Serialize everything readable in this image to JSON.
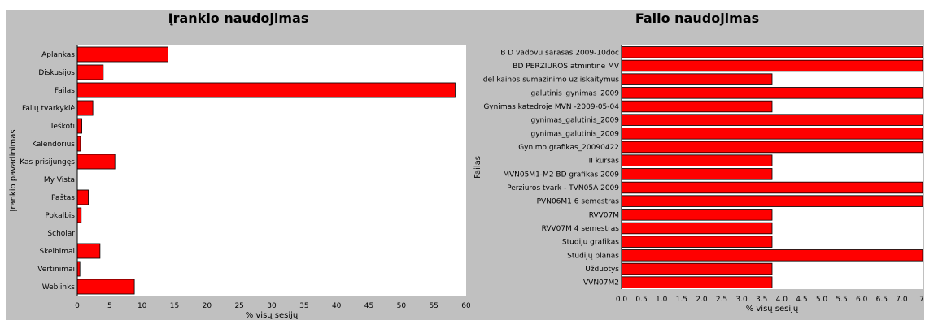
{
  "chart_data": [
    {
      "type": "bar",
      "orientation": "horizontal",
      "title": "Įrankio naudojimas",
      "xlabel": "% visų sesijų",
      "ylabel": "Įrankio pavadinimas",
      "xlim": [
        0,
        60
      ],
      "xticks": [
        "0",
        "5",
        "10",
        "15",
        "20",
        "25",
        "30",
        "35",
        "40",
        "45",
        "50",
        "55",
        "60"
      ],
      "categories": [
        "Aplankas",
        "Diskusijos",
        "Failas",
        "Failų tvarkyklė",
        "Ieškoti",
        "Kalendorius",
        "Kas prisijungęs",
        "My Vista",
        "Paštas",
        "Pokalbis",
        "Scholar",
        "Skelbimai",
        "Vertinimai",
        "Weblinks"
      ],
      "values": [
        14,
        4,
        58.3,
        2.4,
        0.7,
        0.5,
        5.8,
        0,
        1.7,
        0.6,
        0,
        3.5,
        0.4,
        8.8
      ],
      "bar_color": "#ff0000",
      "grid": false
    },
    {
      "type": "bar",
      "orientation": "horizontal",
      "title": "Failo naudojimas",
      "xlabel": "% visų sesijų",
      "ylabel": "Failas",
      "xlim": [
        0,
        7.4
      ],
      "xticks": [
        "0.0",
        "0.5",
        "1.0",
        "1.5",
        "2.0",
        "2.5",
        "3.0",
        "3.5",
        "4.0",
        "4.5",
        "5.0",
        "5.5",
        "6.0",
        "6.5",
        "7.0",
        "7"
      ],
      "categories": [
        "B D  vadovu sarasas  2009-10doc",
        "BD PERZIUROS atmintine MV",
        "del kainos sumazinimo uz iskaitymus",
        "galutinis_gynimas_2009",
        "Gynimas katedroje MVN -2009-05-04",
        "gynimas_galutinis_2009",
        "gynimas_galutinis_2009",
        "Gynimo grafikas_20090422",
        "II kursas",
        "MVN05M1-M2 BD grafikas 2009",
        "Perziuros tvark - TVN05A  2009",
        "PVN06M1 6 semestras",
        "RVV07M",
        "RVV07M 4 semestras",
        "Studiju grafikas",
        "Studijų planas",
        "Užduotys",
        "VVN07M2"
      ],
      "values": [
        7.4,
        7.4,
        3.7,
        7.4,
        3.7,
        7.4,
        7.4,
        7.4,
        3.7,
        3.7,
        7.4,
        7.4,
        3.7,
        3.7,
        3.7,
        7.4,
        3.7,
        3.7
      ],
      "bar_color": "#ff0000",
      "grid": false
    }
  ]
}
